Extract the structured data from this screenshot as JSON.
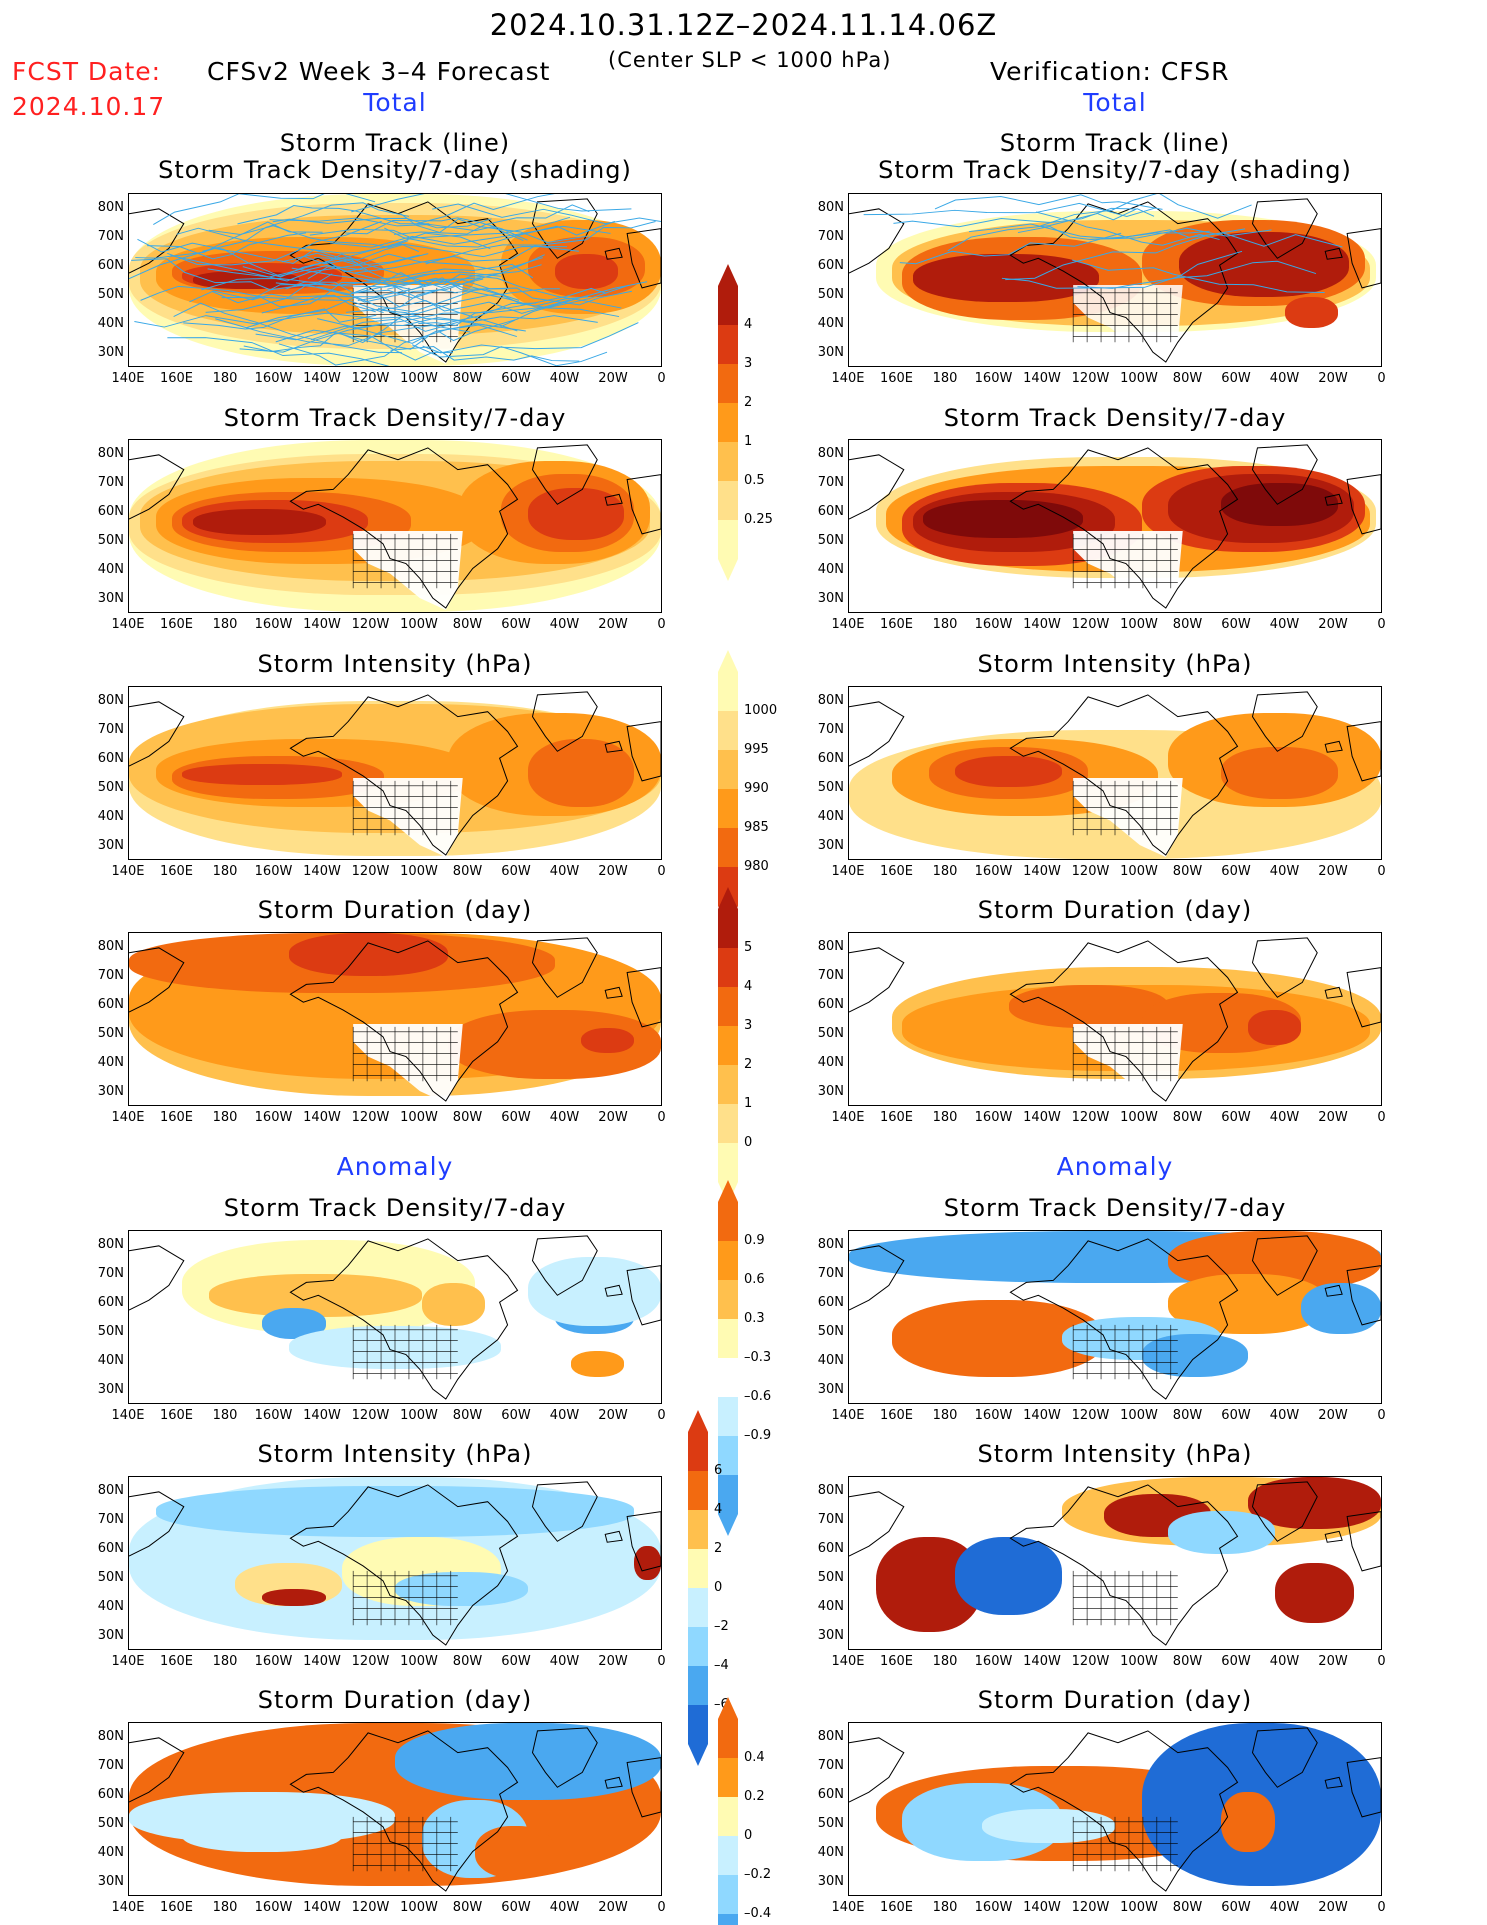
{
  "header": {
    "date_range": "2024.10.31.12Z–2024.11.14.06Z",
    "fcst_label": "FCST Date:",
    "fcst_date": "2024.10.17",
    "forecast_title": "CFSv2 Week 3–4 Forecast",
    "criterion": "(Center SLP < 1000 hPa)",
    "verification_title": "Verification: CFSR"
  },
  "sections": {
    "total": "Total",
    "anomaly": "Anomaly"
  },
  "panel_titles": {
    "track_line": "Storm Track (line)",
    "track_density_shading": "Storm Track Density/7-day (shading)",
    "track_density": "Storm Track Density/7-day",
    "intensity": "Storm Intensity (hPa)",
    "duration": "Storm Duration (day)"
  },
  "axes": {
    "lat_labels": [
      "80N",
      "70N",
      "60N",
      "50N",
      "40N",
      "30N"
    ],
    "lon_labels": [
      "140E",
      "160E",
      "180",
      "160W",
      "140W",
      "120W",
      "100W",
      "80W",
      "60W",
      "40W",
      "20W",
      "0"
    ]
  },
  "colorbars": {
    "density_total": {
      "ticks": [
        "4",
        "3",
        "2",
        "1",
        "0.5",
        "0.25"
      ]
    },
    "intensity_total": {
      "ticks": [
        "1000",
        "995",
        "990",
        "985",
        "980"
      ]
    },
    "duration_total": {
      "ticks": [
        "5",
        "4",
        "3",
        "2",
        "1",
        "0"
      ]
    },
    "density_anom": {
      "ticks": [
        "0.9",
        "0.6",
        "0.3",
        "–0.3",
        "–0.6",
        "–0.9"
      ]
    },
    "intensity_anom": {
      "ticks": [
        "6",
        "4",
        "2",
        "0",
        "–2",
        "–4",
        "–6"
      ]
    },
    "duration_anom": {
      "ticks": [
        "0.4",
        "0.2",
        "0",
        "–0.2",
        "–0.4"
      ]
    }
  },
  "colors": {
    "warm": [
      "#fffbb3",
      "#ffe08a",
      "#ffc04d",
      "#ff9a1a",
      "#f26a10",
      "#dc3b12",
      "#b01c0c",
      "#7f0a0a"
    ],
    "cool": [
      "#c8f0ff",
      "#8fd8ff",
      "#4aa8f0",
      "#1f6cd6"
    ],
    "track_line": "#3aa8e6"
  }
}
